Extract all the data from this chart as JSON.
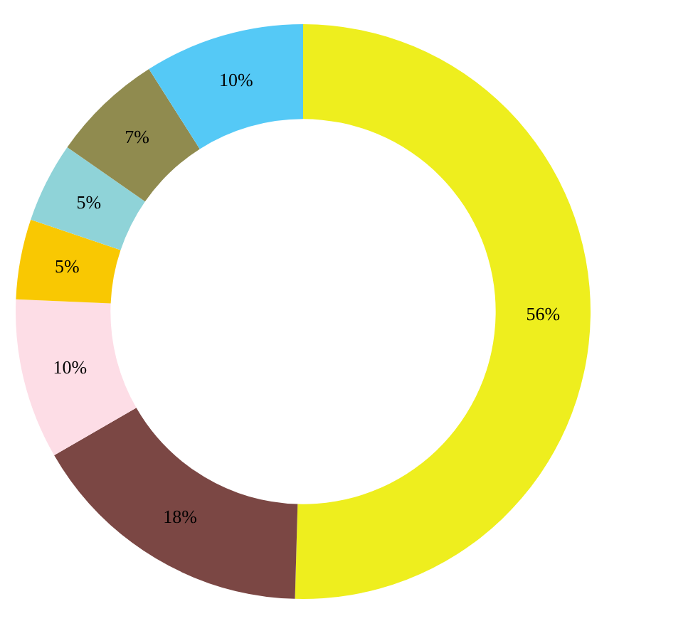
{
  "chart_data": {
    "type": "donut",
    "categories": [
      null,
      null,
      null,
      null,
      null,
      null,
      null
    ],
    "values": [
      56,
      18,
      10,
      5,
      5,
      7,
      10
    ],
    "colors": [
      "#eeee1e",
      "#7b4744",
      "#fddde6",
      "#f9c802",
      "#8fd3d8",
      "#908b4f",
      "#55c9f6"
    ],
    "value_labels": [
      "56%",
      "18%",
      "10%",
      "5%",
      "5%",
      "7%",
      "10%"
    ],
    "legend": false
  }
}
